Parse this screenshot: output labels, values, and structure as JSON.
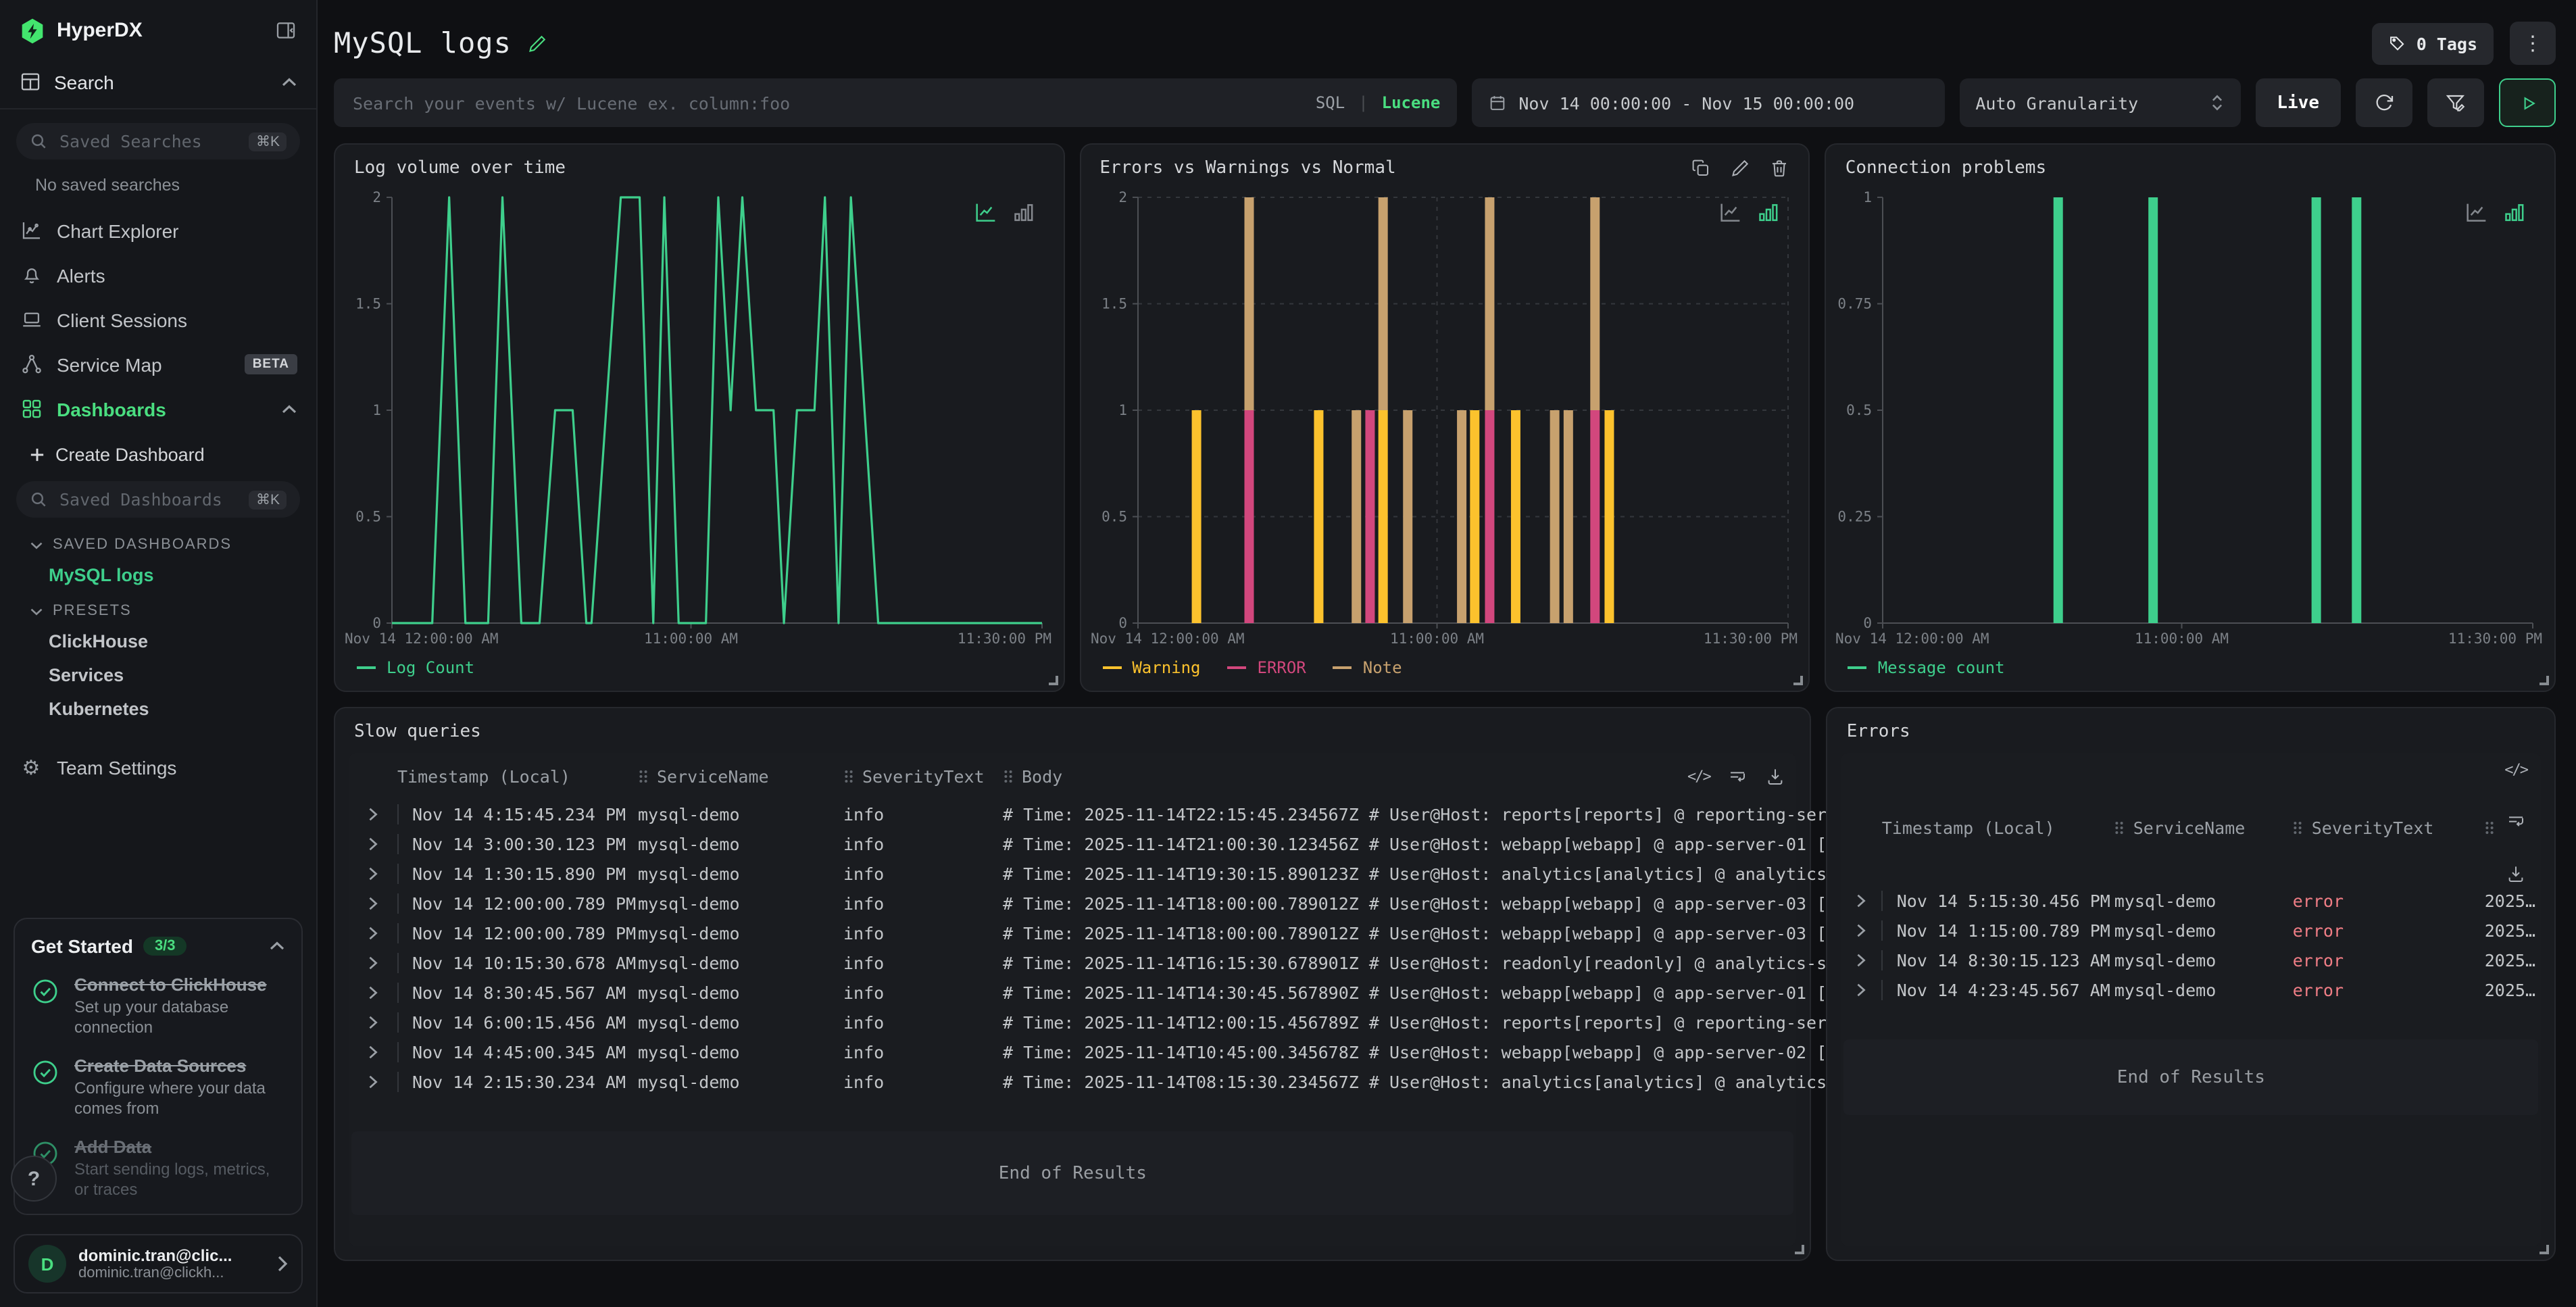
{
  "colors": {
    "accent_green": "#4ade80",
    "chart_green": "#3ecf8c",
    "warning_yellow": "#fcc22d",
    "error_pink": "#d2477d",
    "note_tan": "#c7a16e",
    "error_text": "#ef7d85",
    "panel_bg": "#191b1f",
    "page_bg": "#0f1013",
    "sidebar_bg": "#15171b"
  },
  "sidebar": {
    "logo": "HyperDX",
    "search_section": "Search",
    "saved_searches_placeholder": "Saved Searches",
    "shortcut": "⌘K",
    "no_saved_searches": "No saved searches",
    "nav": {
      "chart_explorer": "Chart Explorer",
      "alerts": "Alerts",
      "client_sessions": "Client Sessions",
      "service_map": "Service Map",
      "service_map_badge": "BETA",
      "dashboards": "Dashboards"
    },
    "create_dashboard": "Create Dashboard",
    "saved_dashboards_placeholder": "Saved Dashboards",
    "saved_dashboards_section": "SAVED DASHBOARDS",
    "saved_dashboards": [
      "MySQL logs"
    ],
    "presets_section": "PRESETS",
    "presets": [
      "ClickHouse",
      "Services",
      "Kubernetes"
    ],
    "team_settings": "Team Settings",
    "get_started": {
      "title": "Get Started",
      "badge": "3/3",
      "items": [
        {
          "title": "Connect to ClickHouse",
          "desc": "Set up your database connection"
        },
        {
          "title": "Create Data Sources",
          "desc": "Configure where your data comes from"
        },
        {
          "title": "Add Data",
          "desc": "Start sending logs, metrics, or traces"
        }
      ]
    },
    "help": "?",
    "user": {
      "initial": "D",
      "name": "dominic.tran@clic...",
      "email": "dominic.tran@clickh..."
    }
  },
  "header": {
    "title": "MySQL logs",
    "tags_label": "0 Tags"
  },
  "toolbar": {
    "search_placeholder": "Search your events w/ Lucene ex. column:foo",
    "sql_label": "SQL",
    "divider": "|",
    "lucene_label": "Lucene",
    "time_range": "Nov 14 00:00:00 - Nov 15 00:00:00",
    "granularity": "Auto Granularity",
    "live_label": "Live"
  },
  "panels": {
    "log_volume_title": "Log volume over time",
    "errors_chart_title": "Errors vs Warnings vs Normal",
    "connection_title": "Connection problems",
    "slow_queries_title": "Slow queries",
    "errors_title": "Errors"
  },
  "chart_data": {
    "log_volume": {
      "type": "line",
      "title": "Log volume over time",
      "ymax": 2,
      "yticks": [
        0,
        0.5,
        1,
        1.5,
        2
      ],
      "xticks": [
        {
          "pos": 0,
          "label": "Nov 14 12:00:00 AM",
          "align": "start"
        },
        {
          "pos": 0.46,
          "label": "11:00:00 AM",
          "align": "middle"
        },
        {
          "pos": 1,
          "label": "11:30:00 PM",
          "align": "end"
        }
      ],
      "color": "#3ecf8c",
      "grid": false,
      "points": [
        [
          0,
          0
        ],
        [
          0.062,
          0
        ],
        [
          0.088,
          2
        ],
        [
          0.113,
          0
        ],
        [
          0.148,
          0
        ],
        [
          0.17,
          2
        ],
        [
          0.199,
          0
        ],
        [
          0.227,
          0
        ],
        [
          0.251,
          1
        ],
        [
          0.278,
          1
        ],
        [
          0.299,
          0
        ],
        [
          0.307,
          0
        ],
        [
          0.352,
          2
        ],
        [
          0.381,
          2
        ],
        [
          0.402,
          0
        ],
        [
          0.419,
          2
        ],
        [
          0.441,
          0
        ],
        [
          0.483,
          0
        ],
        [
          0.502,
          2
        ],
        [
          0.521,
          1
        ],
        [
          0.539,
          2
        ],
        [
          0.56,
          1
        ],
        [
          0.587,
          1
        ],
        [
          0.603,
          0
        ],
        [
          0.623,
          1
        ],
        [
          0.65,
          1
        ],
        [
          0.666,
          2
        ],
        [
          0.687,
          0
        ],
        [
          0.706,
          2
        ],
        [
          0.748,
          0
        ],
        [
          1,
          0
        ]
      ],
      "legend": [
        {
          "label": "Log Count",
          "color": "#3ecf8c"
        }
      ],
      "active_view": "line"
    },
    "errors_warnings": {
      "type": "stacked_bar",
      "title": "Errors vs Warnings vs Normal",
      "ymax": 2,
      "yticks": [
        0,
        0.5,
        1,
        1.5,
        2
      ],
      "xticks": [
        {
          "pos": 0,
          "label": "Nov 14 12:00:00 AM",
          "align": "start"
        },
        {
          "pos": 0.46,
          "label": "11:00:00 AM",
          "align": "middle"
        },
        {
          "pos": 1,
          "label": "11:30:00 PM",
          "align": "end"
        }
      ],
      "grid": true,
      "colors": {
        "warning": "#fcc22d",
        "error": "#d2477d",
        "note": "#c7a16e"
      },
      "bars": [
        {
          "x": 0.09,
          "segments": [
            [
              "warning",
              0,
              1
            ]
          ]
        },
        {
          "x": 0.171,
          "segments": [
            [
              "error",
              0,
              1
            ],
            [
              "note",
              1,
              2
            ]
          ]
        },
        {
          "x": 0.278,
          "segments": [
            [
              "warning",
              0,
              1
            ]
          ]
        },
        {
          "x": 0.336,
          "segments": [
            [
              "note",
              0,
              1
            ]
          ]
        },
        {
          "x": 0.357,
          "segments": [
            [
              "error",
              0,
              1
            ]
          ]
        },
        {
          "x": 0.377,
          "segments": [
            [
              "warning",
              0,
              1
            ],
            [
              "note",
              1,
              2
            ]
          ]
        },
        {
          "x": 0.415,
          "segments": [
            [
              "note",
              0,
              1
            ]
          ]
        },
        {
          "x": 0.498,
          "segments": [
            [
              "note",
              0,
              1
            ]
          ]
        },
        {
          "x": 0.518,
          "segments": [
            [
              "warning",
              0,
              1
            ]
          ]
        },
        {
          "x": 0.541,
          "segments": [
            [
              "error",
              0,
              1
            ],
            [
              "note",
              1,
              2
            ]
          ]
        },
        {
          "x": 0.581,
          "segments": [
            [
              "warning",
              0,
              1
            ]
          ]
        },
        {
          "x": 0.641,
          "segments": [
            [
              "note",
              0,
              1
            ]
          ]
        },
        {
          "x": 0.662,
          "segments": [
            [
              "note",
              0,
              1
            ]
          ]
        },
        {
          "x": 0.703,
          "segments": [
            [
              "error",
              0,
              1
            ],
            [
              "note",
              1,
              2
            ]
          ]
        },
        {
          "x": 0.725,
          "segments": [
            [
              "warning",
              0,
              1
            ]
          ]
        }
      ],
      "legend": [
        {
          "label": "Warning",
          "color": "#fcc22d"
        },
        {
          "label": "ERROR",
          "color": "#d2477d"
        },
        {
          "label": "Note",
          "color": "#c7a16e"
        }
      ],
      "active_view": "bar"
    },
    "connection": {
      "type": "bar",
      "title": "Connection problems",
      "ymax": 1,
      "yticks": [
        0,
        0.25,
        0.5,
        0.75,
        1
      ],
      "xticks": [
        {
          "pos": 0,
          "label": "Nov 14 12:00:00 AM",
          "align": "start"
        },
        {
          "pos": 0.46,
          "label": "11:00:00 AM",
          "align": "middle"
        },
        {
          "pos": 1,
          "label": "11:30:00 PM",
          "align": "end"
        }
      ],
      "color": "#3ecf8c",
      "grid": false,
      "bars": [
        {
          "x": 0.27,
          "v": 1
        },
        {
          "x": 0.416,
          "v": 1
        },
        {
          "x": 0.667,
          "v": 1
        },
        {
          "x": 0.729,
          "v": 1
        }
      ],
      "legend": [
        {
          "label": "Message count",
          "color": "#3ecf8c"
        }
      ],
      "active_view": "bar"
    }
  },
  "tables": {
    "slow_queries": {
      "columns": [
        "Timestamp (Local)",
        "ServiceName",
        "SeverityText",
        "Body"
      ],
      "rows": [
        {
          "ts": "Nov 14 4:15:45.234 PM",
          "service": "mysql-demo",
          "severity": "info",
          "body": "# Time: 2025-11-14T22:15:45.234567Z # User@Host: reports[reports] @ reporting-ser…"
        },
        {
          "ts": "Nov 14 3:00:30.123 PM",
          "service": "mysql-demo",
          "severity": "info",
          "body": "# Time: 2025-11-14T21:00:30.123456Z # User@Host: webapp[webapp] @ app-server-01 […"
        },
        {
          "ts": "Nov 14 1:30:15.890 PM",
          "service": "mysql-demo",
          "severity": "info",
          "body": "# Time: 2025-11-14T19:30:15.890123Z # User@Host: analytics[analytics] @ analytics…"
        },
        {
          "ts": "Nov 14 12:00:00.789 PM",
          "service": "mysql-demo",
          "severity": "info",
          "body": "# Time: 2025-11-14T18:00:00.789012Z # User@Host: webapp[webapp] @ app-server-03 […"
        },
        {
          "ts": "Nov 14 12:00:00.789 PM",
          "service": "mysql-demo",
          "severity": "info",
          "body": "# Time: 2025-11-14T18:00:00.789012Z # User@Host: webapp[webapp] @ app-server-03 […"
        },
        {
          "ts": "Nov 14 10:15:30.678 AM",
          "service": "mysql-demo",
          "severity": "info",
          "body": "# Time: 2025-11-14T16:15:30.678901Z # User@Host: readonly[readonly] @ analytics-s…"
        },
        {
          "ts": "Nov 14 8:30:45.567 AM",
          "service": "mysql-demo",
          "severity": "info",
          "body": "# Time: 2025-11-14T14:30:45.567890Z # User@Host: webapp[webapp] @ app-server-01 […"
        },
        {
          "ts": "Nov 14 6:00:15.456 AM",
          "service": "mysql-demo",
          "severity": "info",
          "body": "# Time: 2025-11-14T12:00:15.456789Z # User@Host: reports[reports] @ reporting-ser…"
        },
        {
          "ts": "Nov 14 4:45:00.345 AM",
          "service": "mysql-demo",
          "severity": "info",
          "body": "# Time: 2025-11-14T10:45:00.345678Z # User@Host: webapp[webapp] @ app-server-02 […"
        },
        {
          "ts": "Nov 14 2:15:30.234 AM",
          "service": "mysql-demo",
          "severity": "info",
          "body": "# Time: 2025-11-14T08:15:30.234567Z # User@Host: analytics[analytics] @ analytics…"
        }
      ],
      "end_label": "End of Results"
    },
    "errors": {
      "columns": [
        "Timestamp (Local)",
        "ServiceName",
        "SeverityText"
      ],
      "rows": [
        {
          "ts": "Nov 14 5:15:30.456 PM",
          "service": "mysql-demo",
          "severity": "error",
          "body": "2025…"
        },
        {
          "ts": "Nov 14 1:15:00.789 PM",
          "service": "mysql-demo",
          "severity": "error",
          "body": "2025…"
        },
        {
          "ts": "Nov 14 8:30:15.123 AM",
          "service": "mysql-demo",
          "severity": "error",
          "body": "2025…"
        },
        {
          "ts": "Nov 14 4:23:45.567 AM",
          "service": "mysql-demo",
          "severity": "error",
          "body": "2025…"
        }
      ],
      "end_label": "End of Results"
    }
  }
}
